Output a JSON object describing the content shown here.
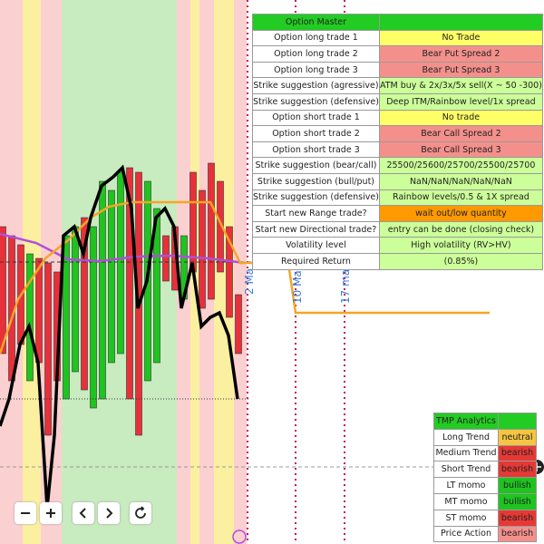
{
  "option_master": {
    "title": "Option Master",
    "rows": [
      {
        "label": "Option long trade 1",
        "value": "No Trade",
        "color": "#ffff66"
      },
      {
        "label": "Option long trade 2",
        "value": "Bear Put Spread 2",
        "color": "#f4908c"
      },
      {
        "label": "Option long trade 3",
        "value": "Bear Put Spread 3",
        "color": "#f4908c"
      },
      {
        "label": "Strike suggestion (agressive)",
        "value": "ATM buy & 2x/3x/5x sell(X ~ 50 -300)",
        "color": "#ccff99"
      },
      {
        "label": "Strike suggestion (defensive)",
        "value": "Deep ITM/Rainbow level/1x spread",
        "color": "#ccff99"
      },
      {
        "label": "Option short trade 1",
        "value": "No trade",
        "color": "#ffff66"
      },
      {
        "label": "Option short trade 2",
        "value": "Bear Call Spread 2",
        "color": "#f4908c"
      },
      {
        "label": "Option short trade 3",
        "value": "Bear Call Spread 3",
        "color": "#f4908c"
      },
      {
        "label": "Strike suggestion (bear/call)",
        "value": "25500/25600/25700/25500/25700",
        "color": "#ccff99"
      },
      {
        "label": "Strike suggestion (bull/put)",
        "value": "NaN/NaN/NaN/NaN/NaN",
        "color": "#ccff99"
      },
      {
        "label": "Strike suggestion (defensive)",
        "value": "Rainbow levels/0.5 & 1X spread",
        "color": "#ccff99"
      },
      {
        "label": "Start new Range trade?",
        "value": "wait out/low quantity",
        "color": "#ff9900"
      },
      {
        "label": "Start new Directional trade?",
        "value": "entry can be done (closing check)",
        "color": "#ccff99"
      },
      {
        "label": "Volatility level",
        "value": "High volatility (RV>HV)",
        "color": "#ccff99"
      },
      {
        "label": "Required Return",
        "value": "(0.85%)",
        "color": "#ccff99"
      }
    ]
  },
  "tmp_analytics": {
    "title": "TMP Analytics",
    "rows": [
      {
        "label": "Long Trend",
        "value": "neutral",
        "color": "#f5c542"
      },
      {
        "label": "Medium Trend",
        "value": "bearish",
        "color": "#e53935"
      },
      {
        "label": "Short Trend",
        "value": "bearish",
        "color": "#e53935"
      },
      {
        "label": "LT momo",
        "value": "bullish",
        "color": "#1fc41f"
      },
      {
        "label": "MT momo",
        "value": "bullish",
        "color": "#1fc41f"
      },
      {
        "label": "ST momo",
        "value": "bearish",
        "color": "#e53935"
      },
      {
        "label": "Price Action",
        "value": "bearish",
        "color": "#f4908c"
      }
    ]
  },
  "date_labels": [
    "2 Ma",
    "10 Ma",
    "17 ma"
  ]
}
